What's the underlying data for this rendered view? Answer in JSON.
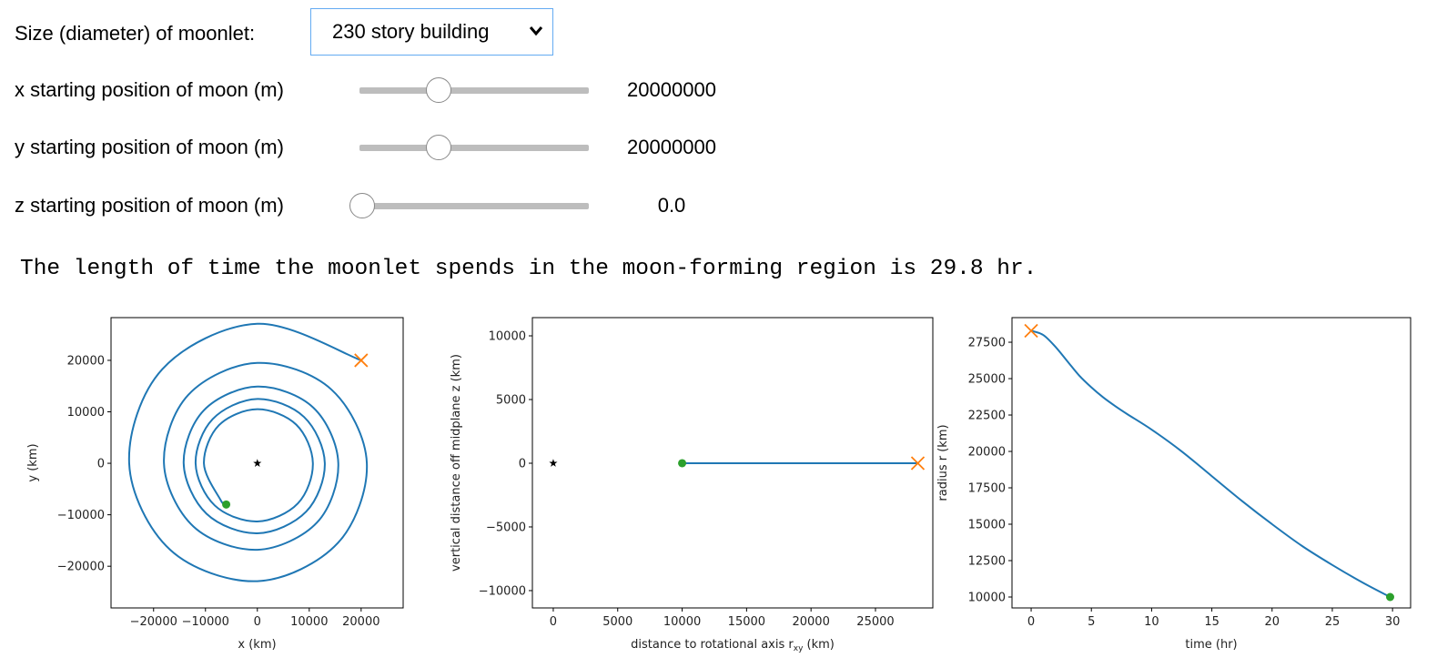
{
  "widgets": {
    "dropdown": {
      "label": "Size (diameter) of moonlet:",
      "value": "230 story building"
    },
    "sliders": [
      {
        "label": "x starting position of moon (m)",
        "value": "20000000"
      },
      {
        "label": "y starting position of moon (m)",
        "value": "20000000"
      },
      {
        "label": "z starting position of moon (m)",
        "value": "0.0"
      }
    ]
  },
  "output": "The length of time the moonlet spends in the moon-forming region is 29.8 hr.",
  "chart_data": [
    {
      "type": "line",
      "xlabel": [
        "x (km)"
      ],
      "ylabel": "y (km)",
      "xlim": [
        -28200,
        28100
      ],
      "ylim": [
        -28100,
        28300
      ],
      "xticks": [
        {
          "value": -20000,
          "label": "−20000"
        },
        {
          "value": -10000,
          "label": "−10000"
        },
        0,
        10000,
        20000
      ],
      "yticks": [
        {
          "value": -20000,
          "label": "−20000"
        },
        {
          "value": -10000,
          "label": "−10000"
        },
        0,
        10000,
        20000
      ],
      "series": [
        {
          "color": "#1f77b4",
          "x": [
            20000,
            0,
            -18300,
            -24700,
            -16800,
            0,
            15500,
            21100,
            14300,
            0,
            -13300,
            -18000,
            -12300,
            0,
            11500,
            15600,
            10800,
            0,
            -10300,
            -14200,
            -9800,
            0,
            9400,
            13000,
            9000,
            0,
            -8600,
            -11900,
            -8200,
            0,
            7800,
            10700,
            7500,
            0,
            -7400,
            -10300,
            -7100,
            -6000
          ],
          "y": [
            20000,
            27100,
            18300,
            0,
            -16800,
            -22900,
            -15500,
            0,
            14300,
            19500,
            13300,
            0,
            -12300,
            -16800,
            -11500,
            0,
            10800,
            14900,
            10300,
            0,
            -9800,
            -13600,
            -9400,
            0,
            9000,
            12500,
            8600,
            0,
            -8200,
            -11300,
            -7800,
            0,
            7500,
            10500,
            7400,
            0,
            -7100,
            -8000
          ]
        }
      ],
      "points": [
        {
          "x": 20000,
          "y": 20000,
          "marker": "x",
          "color": "#ff7f0e"
        },
        {
          "x": -6000,
          "y": -8000,
          "marker": "o",
          "color": "#2ca02c"
        },
        {
          "x": 0,
          "y": 0,
          "marker": "*",
          "color": "#000000"
        }
      ]
    },
    {
      "type": "line",
      "xlabel": [
        "distance to rotational axis r",
        "xy",
        " (km)"
      ],
      "ylabel": "vertical distance off midplane z (km)",
      "xlim": [
        -1620,
        29450
      ],
      "ylim": [
        -11360,
        11430
      ],
      "xticks": [
        0,
        5000,
        10000,
        15000,
        20000,
        25000
      ],
      "yticks": [
        {
          "value": -10000,
          "label": "−10000"
        },
        {
          "value": -5000,
          "label": "−5000"
        },
        0,
        5000,
        10000
      ],
      "series": [
        {
          "color": "#1f77b4",
          "x": [
            10000,
            28284
          ],
          "y": [
            0,
            0
          ]
        }
      ],
      "points": [
        {
          "x": 28284,
          "y": 0,
          "marker": "x",
          "color": "#ff7f0e"
        },
        {
          "x": 10000,
          "y": 0,
          "marker": "o",
          "color": "#2ca02c"
        },
        {
          "x": 0,
          "y": 0,
          "marker": "*",
          "color": "#000000"
        }
      ]
    },
    {
      "type": "line",
      "xlabel": [
        "time (hr)"
      ],
      "ylabel": "radius r (km)",
      "xlim": [
        -1.59,
        31.5
      ],
      "ylim": [
        9250,
        29190
      ],
      "xticks": [
        0,
        5,
        10,
        15,
        20,
        25,
        30
      ],
      "yticks": [
        10000,
        12500,
        15000,
        17500,
        20000,
        22500,
        25000,
        27500
      ],
      "series": [
        {
          "color": "#1f77b4",
          "x": [
            0,
            1,
            2,
            3,
            4,
            5,
            6,
            7,
            8,
            10,
            12.5,
            15,
            17.5,
            20,
            22.5,
            25,
            27.5,
            29.8
          ],
          "y": [
            28284,
            28000,
            27200,
            26200,
            25200,
            24400,
            23700,
            23100,
            22550,
            21500,
            20000,
            18300,
            16600,
            15000,
            13500,
            12200,
            11000,
            10000
          ]
        }
      ],
      "points": [
        {
          "x": 0,
          "y": 28284,
          "marker": "x",
          "color": "#ff7f0e"
        },
        {
          "x": 29.8,
          "y": 10000,
          "marker": "o",
          "color": "#2ca02c"
        }
      ]
    }
  ]
}
